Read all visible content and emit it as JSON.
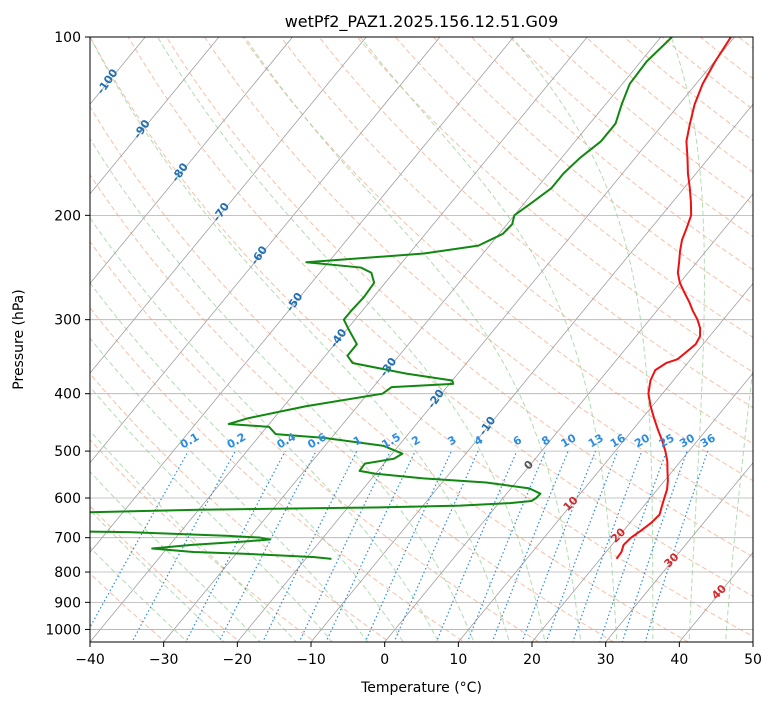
{
  "chart_data": {
    "type": "line",
    "subtype": "skew-T log-P diagram",
    "title": "wetPf2_PAZ1.2025.156.12.51.G09",
    "xlabel": "Temperature (°C)",
    "ylabel": "Pressure (hPa)",
    "xlim": [
      -40,
      50
    ],
    "ylim": [
      1050,
      100
    ],
    "yscale": "log",
    "grid": true,
    "x_ticks": [
      -40,
      -30,
      -20,
      -10,
      0,
      10,
      20,
      30,
      40,
      50
    ],
    "y_ticks": [
      1000,
      900,
      800,
      700,
      600,
      500,
      400,
      300,
      200,
      100
    ],
    "colors": {
      "temperature": "#ee1111",
      "dewpoint": "#118811",
      "isotherm": "#a0a0a0",
      "dry_adiabat": "#f4a582",
      "moist_adiabat": "#9fd39f",
      "mixing_ratio": "#2b8ce0",
      "dry_adiabat_label": "#d62728",
      "isotherm_label": "#1f6fb4",
      "moist_label": "#555555"
    },
    "series": [
      {
        "key": "temperature",
        "points": [
          [
            22.2,
            760
          ],
          [
            22.1,
            740
          ],
          [
            21.6,
            720
          ],
          [
            21.8,
            700
          ],
          [
            22.4,
            680
          ],
          [
            22.9,
            660
          ],
          [
            23.1,
            640
          ],
          [
            22.5,
            620
          ],
          [
            21.9,
            600
          ],
          [
            21.3,
            580
          ],
          [
            20.4,
            560
          ],
          [
            19.3,
            540
          ],
          [
            18.2,
            520
          ],
          [
            16.8,
            500
          ],
          [
            15.2,
            480
          ],
          [
            13.4,
            460
          ],
          [
            11.6,
            440
          ],
          [
            9.8,
            420
          ],
          [
            8.1,
            400
          ],
          [
            6.9,
            380
          ],
          [
            6.4,
            365
          ],
          [
            7.1,
            355
          ],
          [
            8.2,
            350
          ],
          [
            8.6,
            340
          ],
          [
            9.0,
            330
          ],
          [
            8.7,
            320
          ],
          [
            7.8,
            310
          ],
          [
            6.5,
            300
          ],
          [
            4.9,
            290
          ],
          [
            3.4,
            280
          ],
          [
            1.7,
            270
          ],
          [
            0.0,
            260
          ],
          [
            -1.4,
            250
          ],
          [
            -2.4,
            240
          ],
          [
            -3.5,
            230
          ],
          [
            -4.5,
            220
          ],
          [
            -5.2,
            210
          ],
          [
            -6.0,
            200
          ],
          [
            -7.5,
            190
          ],
          [
            -9.2,
            180
          ],
          [
            -11.1,
            170
          ],
          [
            -12.9,
            160
          ],
          [
            -14.9,
            150
          ],
          [
            -16.4,
            140
          ],
          [
            -17.9,
            130
          ],
          [
            -19.1,
            120
          ],
          [
            -19.9,
            110
          ],
          [
            -20.5,
            100
          ]
        ]
      },
      {
        "key": "dewpoint",
        "points": [
          [
            -16.5,
            760
          ],
          [
            -19,
            755
          ],
          [
            -24,
            750
          ],
          [
            -29,
            745
          ],
          [
            -36,
            740
          ],
          [
            -42,
            730
          ],
          [
            -37,
            720
          ],
          [
            -30,
            710
          ],
          [
            -27,
            705
          ],
          [
            -28.5,
            700
          ],
          [
            -33,
            695
          ],
          [
            -40,
            690
          ],
          [
            -47,
            685
          ],
          [
            -70,
            680
          ],
          [
            -68,
            640
          ],
          [
            -40,
            628
          ],
          [
            -15,
            622
          ],
          [
            -5,
            618
          ],
          [
            1.5,
            612
          ],
          [
            4.2,
            607
          ],
          [
            4.5,
            600
          ],
          [
            4.6,
            590
          ],
          [
            2.5,
            578
          ],
          [
            -4,
            565
          ],
          [
            -13,
            556
          ],
          [
            -20,
            546
          ],
          [
            -22.5,
            540
          ],
          [
            -22.6,
            525
          ],
          [
            -19.2,
            515
          ],
          [
            -18.6,
            505
          ],
          [
            -22,
            490
          ],
          [
            -31,
            475
          ],
          [
            -38,
            468
          ],
          [
            -39.7,
            455
          ],
          [
            -45.5,
            450
          ],
          [
            -43.5,
            440
          ],
          [
            -37,
            420
          ],
          [
            -28,
            400
          ],
          [
            -27.5,
            390
          ],
          [
            -19.5,
            385
          ],
          [
            -20,
            380
          ],
          [
            -27,
            370
          ],
          [
            -35.5,
            355
          ],
          [
            -37,
            345
          ],
          [
            -37,
            330
          ],
          [
            -40,
            310
          ],
          [
            -41.5,
            300
          ],
          [
            -41.5,
            290
          ],
          [
            -41.3,
            275
          ],
          [
            -41.5,
            260
          ],
          [
            -43,
            250
          ],
          [
            -45,
            245
          ],
          [
            -53,
            240
          ],
          [
            -38,
            232
          ],
          [
            -31.5,
            225
          ],
          [
            -29.5,
            215
          ],
          [
            -29.3,
            207
          ],
          [
            -30,
            200
          ],
          [
            -29,
            190
          ],
          [
            -28,
            180
          ],
          [
            -28,
            170
          ],
          [
            -27.5,
            160
          ],
          [
            -26.5,
            150
          ],
          [
            -26.5,
            140
          ],
          [
            -27.8,
            130
          ],
          [
            -29,
            120
          ],
          [
            -29.2,
            110
          ],
          [
            -28.5,
            100
          ]
        ]
      }
    ],
    "mixing_ratio_labels": [
      "0.1",
      "0.2",
      "0.4",
      "0.6",
      "1",
      "1.5",
      "2",
      "3",
      "4",
      "6",
      "8",
      "10",
      "13",
      "16",
      "20",
      "25",
      "30",
      "36"
    ],
    "mixing_ratio_values": [
      0.1,
      0.2,
      0.4,
      0.6,
      1,
      1.5,
      2,
      3,
      4,
      6,
      8,
      10,
      13,
      16,
      20,
      25,
      30,
      36
    ],
    "isotherm_labels": [
      "-100",
      "-90",
      "-80",
      "-70",
      "-60",
      "-50",
      "-40",
      "-30",
      "-20",
      "-10"
    ],
    "isotherm_values": [
      -100,
      -90,
      -80,
      -70,
      -60,
      -50,
      -40,
      -30,
      -20,
      -10
    ],
    "dry_adiabat_labels": [
      "10",
      "20",
      "30",
      "40"
    ],
    "dry_adiabat_values": [
      10,
      20,
      30,
      40
    ],
    "moist_adiabat_labels": [
      "0"
    ],
    "moist_adiabat_values": [
      0
    ]
  }
}
